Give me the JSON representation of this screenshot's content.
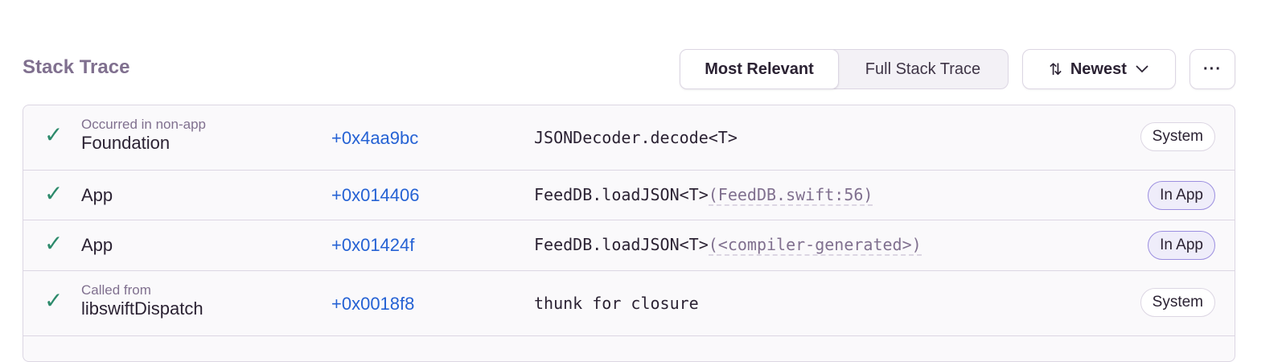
{
  "header": {
    "title": "Stack Trace",
    "view_toggle": {
      "options": [
        "Most Relevant",
        "Full Stack Trace"
      ],
      "selected": "Most Relevant"
    },
    "sort": {
      "icon": "sort-arrows-icon",
      "label": "Newest"
    },
    "more_label": "···"
  },
  "frames": [
    {
      "sublabel": "Occurred in non-app",
      "module": "Foundation",
      "address": "+0x4aa9bc",
      "function": "JSONDecoder.decode<T>",
      "file": "",
      "badge": "System"
    },
    {
      "sublabel": "",
      "module": "App",
      "address": "+0x014406",
      "function": "FeedDB.loadJSON<T>",
      "file": "(FeedDB.swift:56)",
      "badge": "In App"
    },
    {
      "sublabel": "",
      "module": "App",
      "address": "+0x01424f",
      "function": "FeedDB.loadJSON<T>",
      "file": "(<compiler-generated>)",
      "badge": "In App"
    },
    {
      "sublabel": "Called from",
      "module": "libswiftDispatch",
      "address": "+0x0018f8",
      "function": "thunk for closure",
      "file": "",
      "badge": "System"
    }
  ],
  "colors": {
    "check": "#2c8a6b",
    "address": "#2562d4",
    "title": "#80708f"
  }
}
